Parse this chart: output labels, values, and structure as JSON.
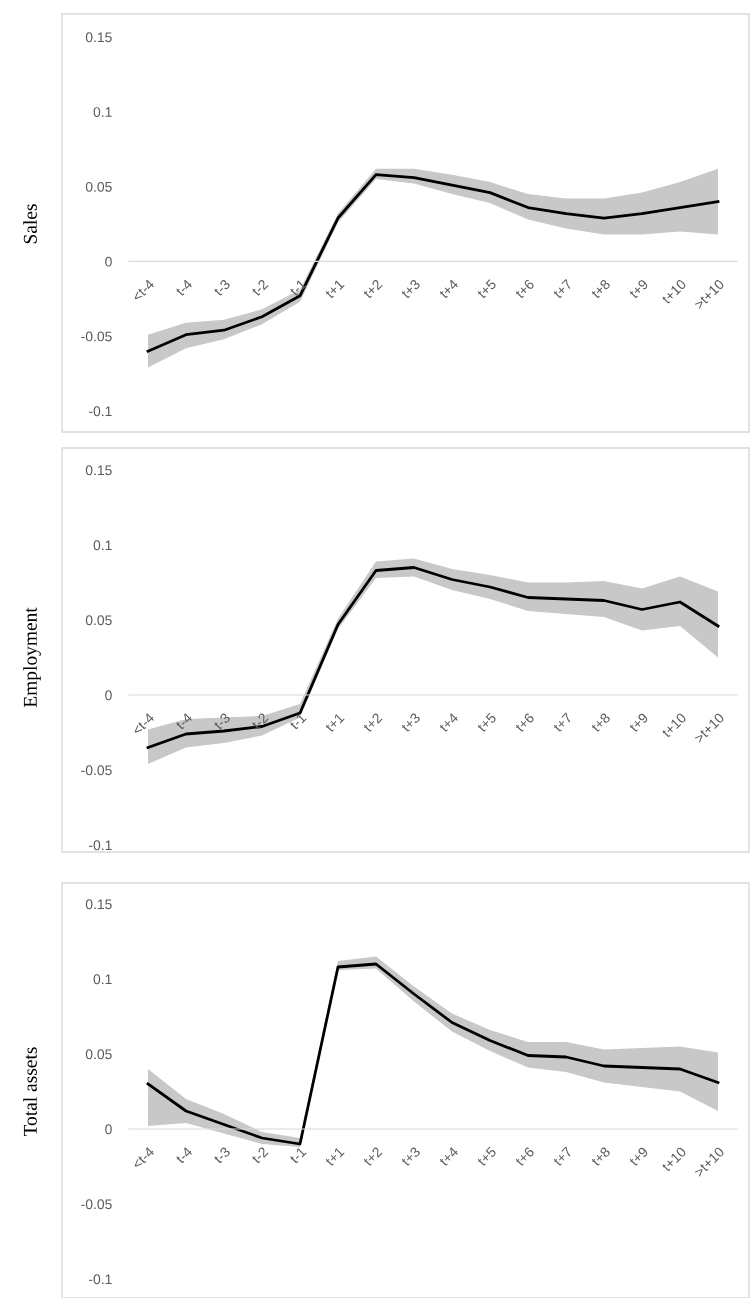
{
  "chart_data": [
    {
      "type": "line",
      "ylabel": "Sales",
      "categories": [
        "<t-4",
        "t-4",
        "t-3",
        "t-2",
        "t-1",
        "t+1",
        "t+2",
        "t+3",
        "t+4",
        "t+5",
        "t+6",
        "t+7",
        "t+8",
        "t+9",
        "t+10",
        ">t+10"
      ],
      "ylim": [
        -0.1,
        0.15
      ],
      "yticks": [
        -0.1,
        -0.05,
        0,
        0.05,
        0.1,
        0.15
      ],
      "grid": false,
      "legend": false,
      "series": [
        {
          "color": "#000000",
          "values": [
            -0.06,
            -0.049,
            -0.046,
            -0.037,
            -0.023,
            0.029,
            0.058,
            0.056,
            0.051,
            0.046,
            0.036,
            0.032,
            0.029,
            0.032,
            0.036,
            0.04
          ],
          "lower": [
            -0.071,
            -0.058,
            -0.052,
            -0.042,
            -0.027,
            0.026,
            0.055,
            0.052,
            0.045,
            0.039,
            0.028,
            0.022,
            0.018,
            0.018,
            0.02,
            0.018
          ],
          "upper": [
            -0.049,
            -0.041,
            -0.039,
            -0.032,
            -0.019,
            0.032,
            0.062,
            0.062,
            0.058,
            0.053,
            0.045,
            0.042,
            0.042,
            0.046,
            0.053,
            0.062
          ]
        }
      ]
    },
    {
      "type": "line",
      "ylabel": "Employment",
      "categories": [
        "<t-4",
        "t-4",
        "t-3",
        "t-2",
        "t-1",
        "t+1",
        "t+2",
        "t+3",
        "t+4",
        "t+5",
        "t+6",
        "t+7",
        "t+8",
        "t+9",
        "t+10",
        ">t+10"
      ],
      "ylim": [
        -0.1,
        0.15
      ],
      "yticks": [
        -0.1,
        -0.05,
        0,
        0.05,
        0.1,
        0.15
      ],
      "grid": false,
      "legend": false,
      "series": [
        {
          "color": "#000000",
          "values": [
            -0.035,
            -0.026,
            -0.024,
            -0.021,
            -0.012,
            0.047,
            0.083,
            0.085,
            0.077,
            0.072,
            0.065,
            0.064,
            0.063,
            0.057,
            0.062,
            0.046
          ],
          "lower": [
            -0.046,
            -0.035,
            -0.032,
            -0.027,
            -0.015,
            0.044,
            0.078,
            0.079,
            0.07,
            0.064,
            0.056,
            0.054,
            0.052,
            0.043,
            0.046,
            0.025
          ],
          "upper": [
            -0.023,
            -0.016,
            -0.015,
            -0.014,
            -0.006,
            0.051,
            0.089,
            0.091,
            0.084,
            0.08,
            0.075,
            0.075,
            0.076,
            0.071,
            0.079,
            0.069
          ]
        }
      ]
    },
    {
      "type": "line",
      "ylabel": "Total assets",
      "categories": [
        "<t-4",
        "t-4",
        "t-3",
        "t-2",
        "t-1",
        "t+1",
        "t+2",
        "t+3",
        "t+4",
        "t+5",
        "t+6",
        "t+7",
        "t+8",
        "t+9",
        "t+10",
        ">t+10"
      ],
      "ylim": [
        -0.1,
        0.15
      ],
      "yticks": [
        -0.1,
        -0.05,
        0,
        0.05,
        0.1,
        0.15
      ],
      "grid": false,
      "legend": false,
      "series": [
        {
          "color": "#000000",
          "values": [
            0.03,
            0.012,
            0.003,
            -0.006,
            -0.01,
            0.108,
            0.11,
            0.09,
            0.071,
            0.059,
            0.049,
            0.048,
            0.042,
            0.041,
            0.04,
            0.031
          ],
          "lower": [
            0.002,
            0.004,
            -0.003,
            -0.01,
            -0.012,
            0.106,
            0.107,
            0.085,
            0.065,
            0.052,
            0.041,
            0.038,
            0.031,
            0.028,
            0.025,
            0.012
          ],
          "upper": [
            0.04,
            0.02,
            0.01,
            -0.002,
            -0.006,
            0.112,
            0.115,
            0.095,
            0.077,
            0.066,
            0.058,
            0.058,
            0.053,
            0.054,
            0.055,
            0.051
          ]
        }
      ]
    }
  ]
}
